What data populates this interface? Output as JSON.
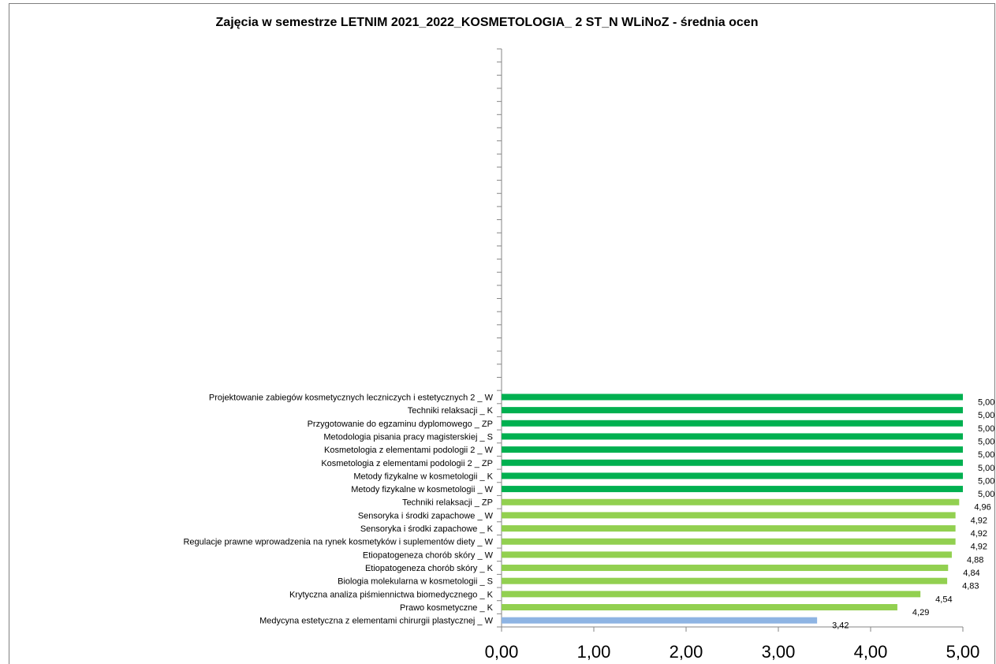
{
  "chart_data": {
    "type": "bar",
    "orientation": "horizontal",
    "title": "Zajęcia w semestrze LETNIM 2021_2022_KOSMETOLOGIA_  2 ST_N WLiNoZ - średnia ocen",
    "xlim": [
      0,
      5
    ],
    "x_tick_labels": [
      "0,00",
      "1,00",
      "2,00",
      "3,00",
      "4,00",
      "5,00"
    ],
    "x_ticks": [
      0,
      1,
      2,
      3,
      4,
      5
    ],
    "grid": false,
    "legend": "none",
    "categories": [
      "Projektowanie zabiegów kosmetycznych leczniczych i estetycznych 2 _ W",
      "Techniki relaksacji _ K",
      "Przygotowanie do egzaminu dyplomowego _ ZP",
      "Metodologia pisania pracy magisterskiej _ S",
      "Kosmetologia z elementami podologii 2 _ W",
      "Kosmetologia z elementami podologii 2 _ ZP",
      "Metody fizykalne w kosmetologii _ K",
      "Metody fizykalne w kosmetologii _ W",
      "Techniki relaksacji _ ZP",
      "Sensoryka i środki zapachowe _ W",
      "Sensoryka i środki zapachowe _ K",
      "Regulacje prawne wprowadzenia na rynek kosmetyków i suplementów diety _ W",
      "Etiopatogeneza chorób skóry _ W",
      "Etiopatogeneza chorób skóry _ K",
      "Biologia molekularna w kosmetologii _ S",
      "Krytyczna analiza piśmiennictwa biomedycznego   _ K",
      "Prawo kosmetyczne _ K",
      "Medycyna estetyczna z elementami chirurgii plastycznej _ W"
    ],
    "values": [
      5.0,
      5.0,
      5.0,
      5.0,
      5.0,
      5.0,
      5.0,
      5.0,
      4.96,
      4.92,
      4.92,
      4.92,
      4.88,
      4.84,
      4.83,
      4.54,
      4.29,
      3.42
    ],
    "value_labels": [
      "5,00",
      "5,00",
      "5,00",
      "5,00",
      "5,00",
      "5,00",
      "5,00",
      "5,00",
      "4,96",
      "4,92",
      "4,92",
      "4,92",
      "4,88",
      "4,84",
      "4,83",
      "4,54",
      "4,29",
      "3,42"
    ],
    "empty_category_slots": 26,
    "colors": {
      "dark_green": "#00b050",
      "light_green": "#92d050",
      "blue": "#8eb4e3",
      "axis": "#868686",
      "text": "#000000"
    },
    "bar_color_keys": [
      "dark_green",
      "dark_green",
      "dark_green",
      "dark_green",
      "dark_green",
      "dark_green",
      "dark_green",
      "dark_green",
      "light_green",
      "light_green",
      "light_green",
      "light_green",
      "light_green",
      "light_green",
      "light_green",
      "light_green",
      "light_green",
      "blue"
    ]
  }
}
